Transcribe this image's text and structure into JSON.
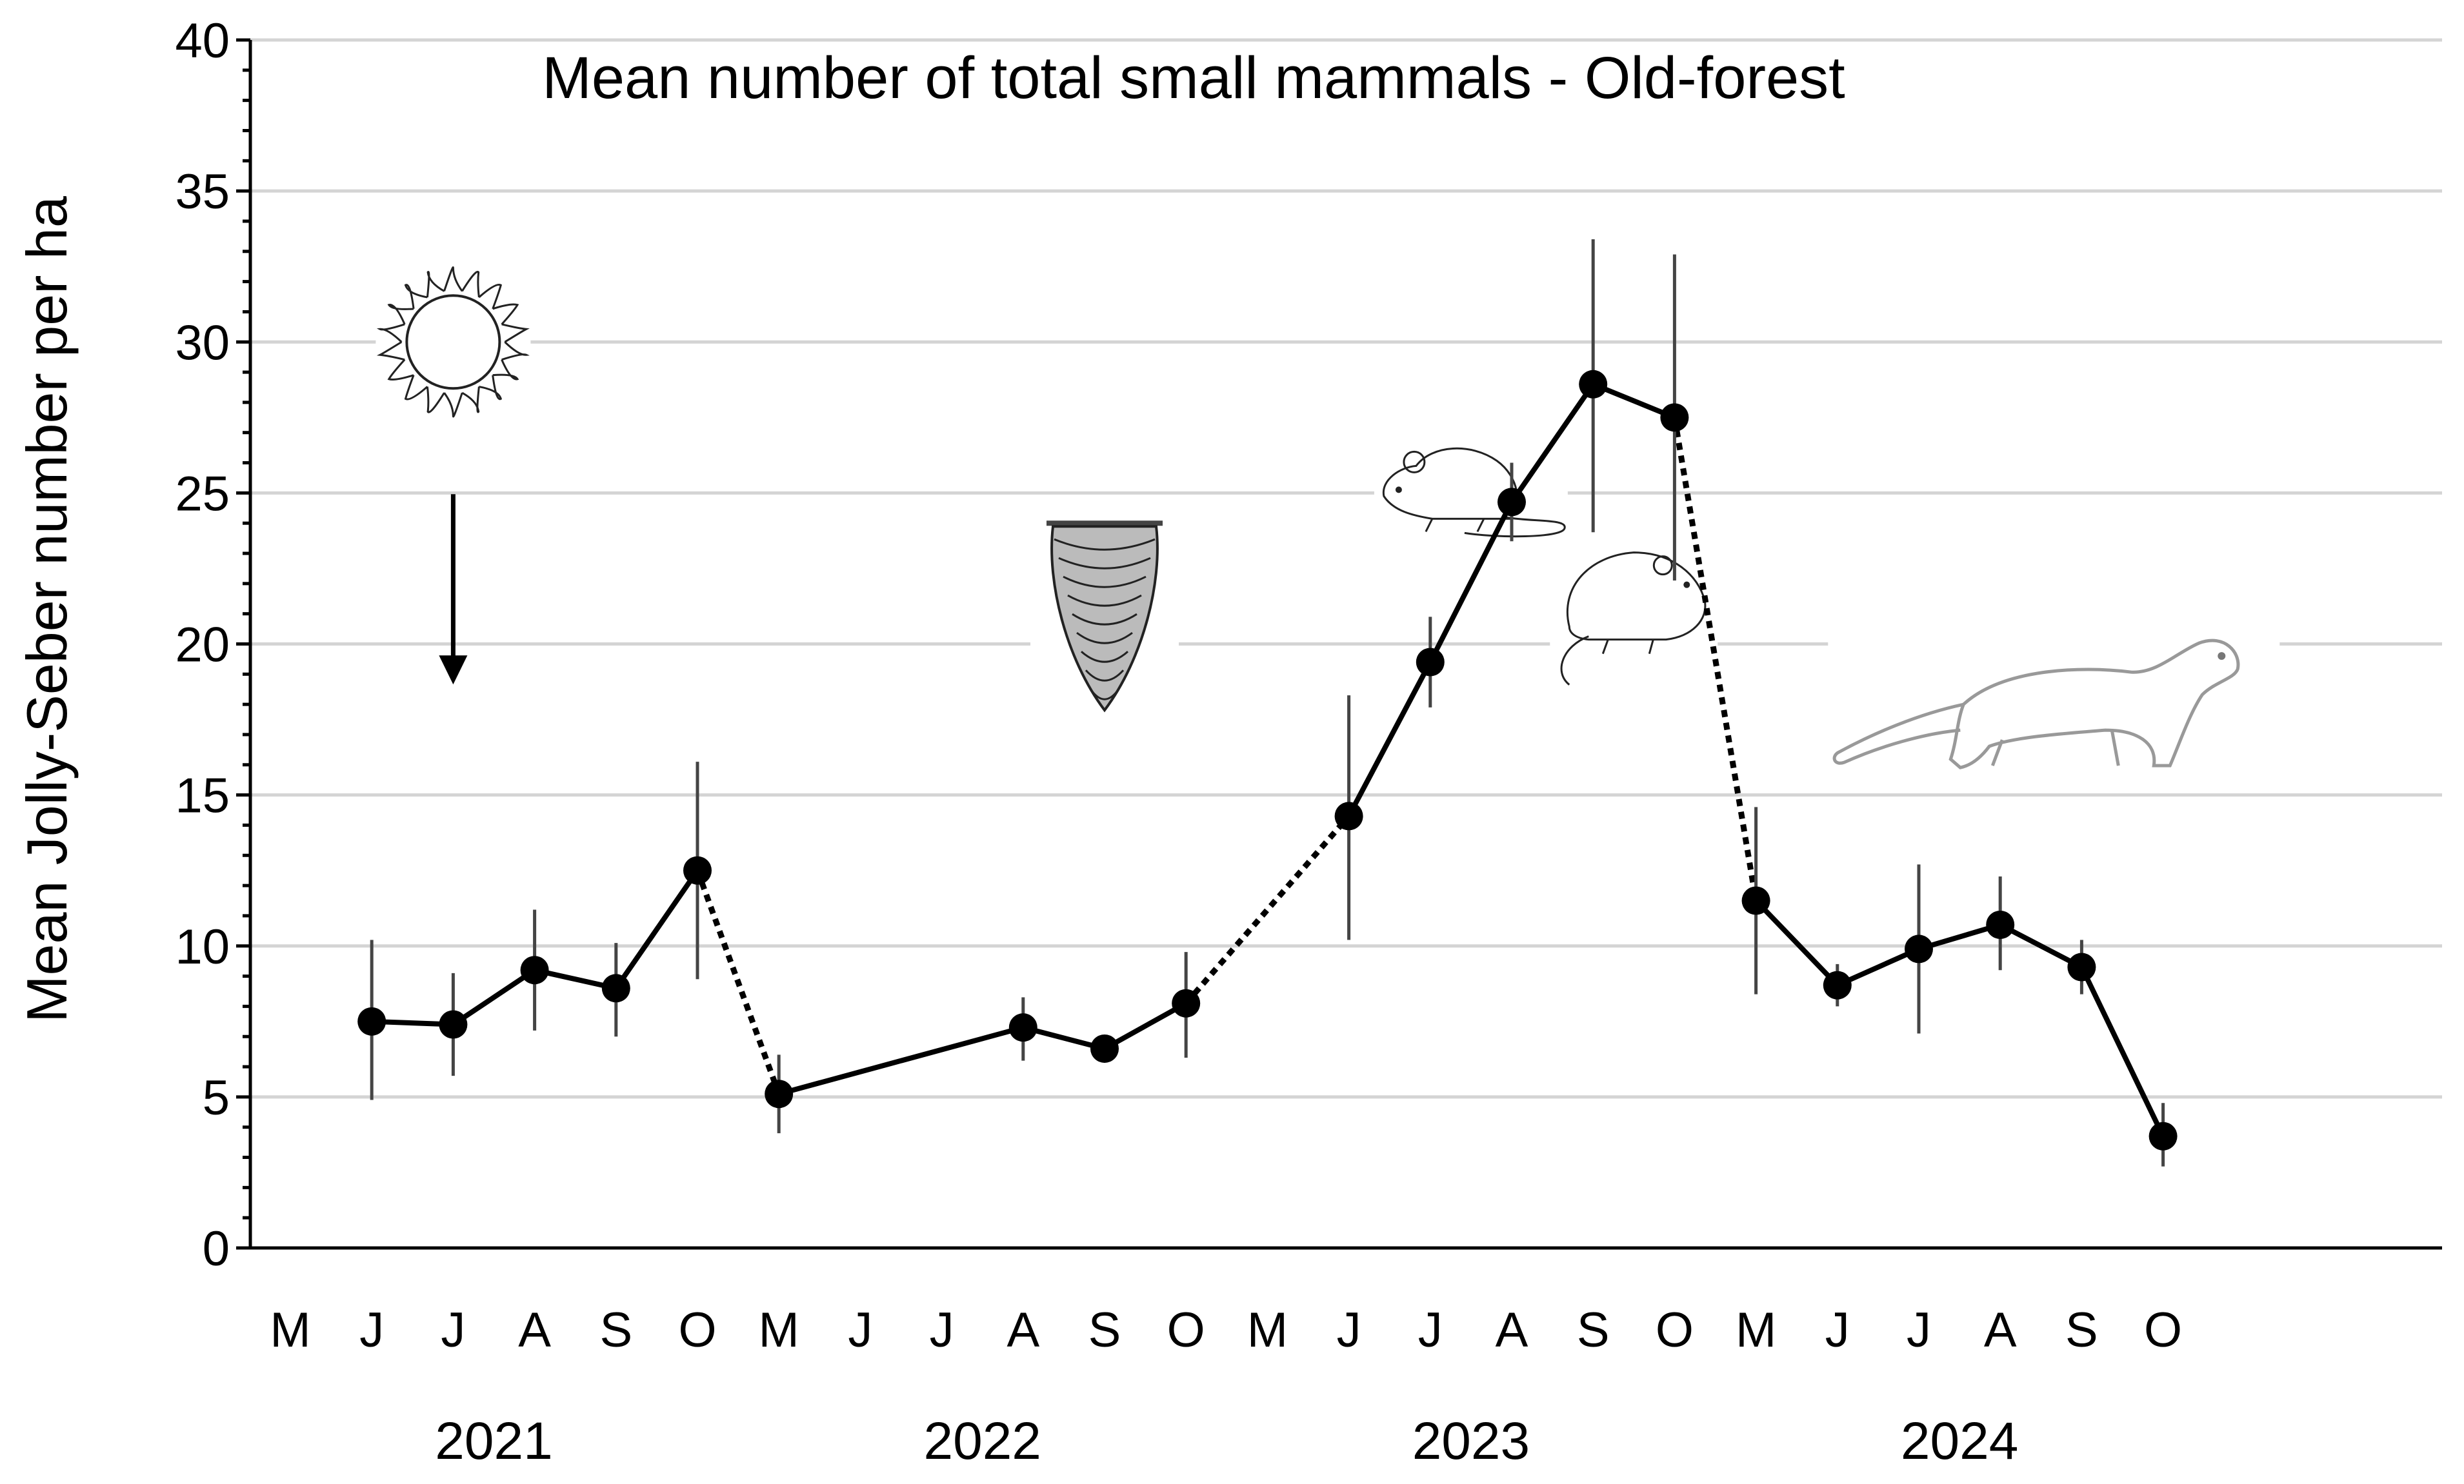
{
  "chart_data": {
    "type": "line",
    "title": "Mean number of total small mammals - Old-forest",
    "ylabel": "Mean Jolly-Seber number per ha",
    "xlabel": "",
    "ylim": [
      0,
      40
    ],
    "yticks": [
      0,
      5,
      10,
      15,
      20,
      25,
      30,
      35,
      40
    ],
    "grid": true,
    "months": [
      "M",
      "J",
      "J",
      "A",
      "S",
      "O",
      "M",
      "J",
      "J",
      "A",
      "S",
      "O",
      "M",
      "J",
      "J",
      "A",
      "S",
      "O",
      "M",
      "J",
      "J",
      "A",
      "S",
      "O"
    ],
    "years": [
      "2021",
      "2022",
      "2023",
      "2024"
    ],
    "points": [
      {
        "slot": 1,
        "y": 7.5,
        "lo": 4.9,
        "hi": 10.2
      },
      {
        "slot": 2,
        "y": 7.4,
        "lo": 5.7,
        "hi": 9.1
      },
      {
        "slot": 3,
        "y": 9.2,
        "lo": 7.2,
        "hi": 11.2
      },
      {
        "slot": 4,
        "y": 8.6,
        "lo": 7.0,
        "hi": 10.1
      },
      {
        "slot": 5,
        "y": 12.5,
        "lo": 8.9,
        "hi": 16.1
      },
      {
        "slot": 6,
        "y": 5.1,
        "lo": 3.8,
        "hi": 6.4
      },
      {
        "slot": 9,
        "y": 7.3,
        "lo": 6.2,
        "hi": 8.3
      },
      {
        "slot": 10,
        "y": 6.6,
        "lo": 6.5,
        "hi": 6.7
      },
      {
        "slot": 11,
        "y": 8.1,
        "lo": 6.3,
        "hi": 9.8
      },
      {
        "slot": 13,
        "y": 14.3,
        "lo": 10.2,
        "hi": 18.3
      },
      {
        "slot": 14,
        "y": 19.4,
        "lo": 17.9,
        "hi": 20.9
      },
      {
        "slot": 15,
        "y": 24.7,
        "lo": 23.4,
        "hi": 26.0
      },
      {
        "slot": 16,
        "y": 28.6,
        "lo": 23.7,
        "hi": 33.4
      },
      {
        "slot": 17,
        "y": 27.5,
        "lo": 22.1,
        "hi": 32.9
      },
      {
        "slot": 18,
        "y": 11.5,
        "lo": 8.4,
        "hi": 14.6
      },
      {
        "slot": 19,
        "y": 8.7,
        "lo": 8.0,
        "hi": 9.4
      },
      {
        "slot": 20,
        "y": 9.9,
        "lo": 7.1,
        "hi": 12.7
      },
      {
        "slot": 21,
        "y": 10.7,
        "lo": 9.2,
        "hi": 12.3
      },
      {
        "slot": 22,
        "y": 9.3,
        "lo": 8.4,
        "hi": 10.2
      },
      {
        "slot": 23,
        "y": 3.7,
        "lo": 2.7,
        "hi": 4.8
      }
    ],
    "connections": [
      {
        "from": 1,
        "to": 2,
        "style": "solid"
      },
      {
        "from": 2,
        "to": 3,
        "style": "solid"
      },
      {
        "from": 3,
        "to": 4,
        "style": "solid"
      },
      {
        "from": 4,
        "to": 5,
        "style": "solid"
      },
      {
        "from": 5,
        "to": 6,
        "style": "dotted"
      },
      {
        "from": 6,
        "to": 9,
        "style": "solid"
      },
      {
        "from": 9,
        "to": 10,
        "style": "solid"
      },
      {
        "from": 10,
        "to": 11,
        "style": "solid"
      },
      {
        "from": 11,
        "to": 13,
        "style": "dotted"
      },
      {
        "from": 13,
        "to": 14,
        "style": "solid"
      },
      {
        "from": 14,
        "to": 15,
        "style": "solid"
      },
      {
        "from": 15,
        "to": 16,
        "style": "solid"
      },
      {
        "from": 16,
        "to": 17,
        "style": "solid"
      },
      {
        "from": 17,
        "to": 18,
        "style": "dotted"
      },
      {
        "from": 18,
        "to": 19,
        "style": "solid"
      },
      {
        "from": 19,
        "to": 20,
        "style": "solid"
      },
      {
        "from": 20,
        "to": 21,
        "style": "solid"
      },
      {
        "from": 21,
        "to": 22,
        "style": "solid"
      },
      {
        "from": 22,
        "to": 23,
        "style": "solid"
      }
    ],
    "annotations": [
      {
        "icon": "sun-icon",
        "slot": 2,
        "y": 30
      },
      {
        "icon": "down-arrow-icon",
        "slot": 2,
        "y": 24
      },
      {
        "icon": "conifer-cone-icon",
        "slot": 10,
        "y": 24
      },
      {
        "icon": "mouse-icon",
        "slot": 14.5,
        "y": 25
      },
      {
        "icon": "vole-icon",
        "slot": 16.5,
        "y": 21
      },
      {
        "icon": "weasel-icon",
        "slot": 21.5,
        "y": 18
      }
    ]
  }
}
